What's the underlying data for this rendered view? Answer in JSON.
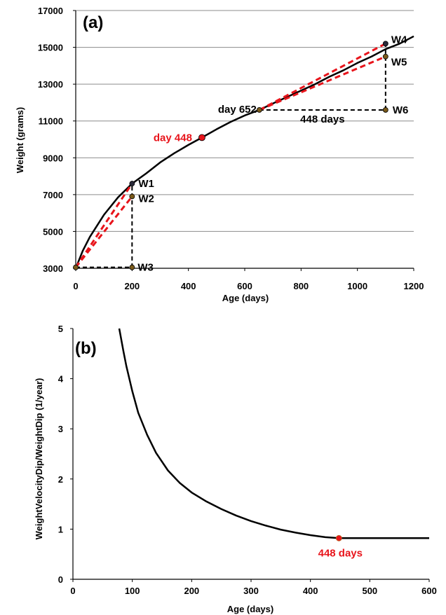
{
  "colors": {
    "curve": "#000000",
    "red": "#e8141b",
    "dash": "#000000",
    "grid": "#8c8c8c",
    "pointDark": "#2a2a3a"
  },
  "chart_data": [
    {
      "type": "line",
      "panel_label": "(a)",
      "xlabel": "Age (days)",
      "ylabel": "Weight (grams)",
      "xlim": [
        0,
        1200
      ],
      "ylim": [
        3000,
        17000
      ],
      "xticks": [
        0,
        200,
        400,
        600,
        800,
        1000,
        1200
      ],
      "yticks": [
        3000,
        5000,
        7000,
        9000,
        11000,
        13000,
        15000,
        17000
      ],
      "grid": "horizontal",
      "series": [
        {
          "style": "solid",
          "x": [
            0,
            25,
            50,
            100,
            150,
            200,
            250,
            300,
            350,
            400,
            448,
            500,
            550,
            600,
            652,
            700,
            750,
            800,
            850,
            900,
            950,
            1000,
            1050,
            1100,
            1150,
            1200
          ],
          "y": [
            3000,
            3950,
            4700,
            5900,
            6850,
            7600,
            8150,
            8750,
            9250,
            9700,
            10100,
            10550,
            10950,
            11300,
            11600,
            11950,
            12300,
            12650,
            13000,
            13400,
            13750,
            14150,
            14500,
            14900,
            15200,
            15600
          ]
        }
      ],
      "points": [
        {
          "name": "W1",
          "x": 200,
          "y": 7600,
          "color": "dark"
        },
        {
          "name": "W2",
          "x": 200,
          "y": 6900,
          "color": "orange"
        },
        {
          "name": "W3",
          "x": 200,
          "y": 3050,
          "color": "orange"
        },
        {
          "name": "W4",
          "x": 1100,
          "y": 15200,
          "color": "dark"
        },
        {
          "name": "W5",
          "x": 1100,
          "y": 14500,
          "color": "orange"
        },
        {
          "name": "W6",
          "x": 1100,
          "y": 11600,
          "color": "orange"
        },
        {
          "name": "day 652",
          "x": 652,
          "y": 11600,
          "color": "orange"
        },
        {
          "name": "day 448",
          "x": 448,
          "y": 10100,
          "color": "red"
        },
        {
          "name": "origin",
          "x": 0,
          "y": 3050,
          "color": "orange"
        }
      ],
      "annotations": [
        {
          "text": "W1",
          "x": 200,
          "y": 7600,
          "color": "black"
        },
        {
          "text": "W2",
          "x": 200,
          "y": 6900,
          "color": "black"
        },
        {
          "text": "W3",
          "x": 200,
          "y": 3050,
          "color": "black"
        },
        {
          "text": "W4",
          "x": 1100,
          "y": 15200,
          "color": "black"
        },
        {
          "text": "W5",
          "x": 1100,
          "y": 14500,
          "color": "black"
        },
        {
          "text": "W6",
          "x": 1100,
          "y": 11600,
          "color": "black"
        },
        {
          "text": "day 652",
          "x": 652,
          "y": 11600,
          "color": "black"
        },
        {
          "text": "448 days",
          "x": 876,
          "y": 11600,
          "color": "black"
        },
        {
          "text": "day 448",
          "x": 448,
          "y": 10100,
          "color": "red"
        }
      ],
      "dashed_black": [
        {
          "x": [
            0,
            200,
            200
          ],
          "y": [
            3050,
            3050,
            7600
          ]
        },
        {
          "x": [
            652,
            1100,
            1100
          ],
          "y": [
            11600,
            11600,
            15200
          ]
        }
      ],
      "dashed_red": [
        {
          "x": [
            0,
            200
          ],
          "y": [
            3050,
            7600
          ]
        },
        {
          "x": [
            0,
            200
          ],
          "y": [
            3050,
            6900
          ]
        },
        {
          "x": [
            652,
            1100
          ],
          "y": [
            11600,
            15200
          ]
        },
        {
          "x": [
            652,
            1100
          ],
          "y": [
            11600,
            14500
          ]
        }
      ]
    },
    {
      "type": "line",
      "panel_label": "(b)",
      "xlabel": "Age (days)",
      "ylabel": "WeightVelocityDip/WeightDip (1/year)",
      "xlim": [
        0,
        600
      ],
      "ylim": [
        0,
        5
      ],
      "xticks": [
        0,
        100,
        200,
        300,
        400,
        500,
        600
      ],
      "yticks": [
        0,
        1,
        2,
        3,
        4,
        5
      ],
      "grid": "none",
      "series": [
        {
          "style": "solid",
          "x": [
            78,
            85,
            90,
            100,
            110,
            125,
            140,
            160,
            180,
            200,
            225,
            250,
            275,
            300,
            325,
            350,
            375,
            400,
            425,
            448,
            500,
            550,
            600
          ],
          "y": [
            5.0,
            4.55,
            4.25,
            3.75,
            3.32,
            2.88,
            2.52,
            2.17,
            1.92,
            1.73,
            1.55,
            1.4,
            1.27,
            1.16,
            1.07,
            0.99,
            0.93,
            0.88,
            0.84,
            0.82,
            0.82,
            0.82,
            0.82
          ]
        }
      ],
      "points": [
        {
          "name": "448 days",
          "x": 448,
          "y": 0.82,
          "color": "red"
        }
      ],
      "annotations": [
        {
          "text": "448 days",
          "x": 448,
          "y": 0.82,
          "color": "red"
        }
      ]
    }
  ]
}
